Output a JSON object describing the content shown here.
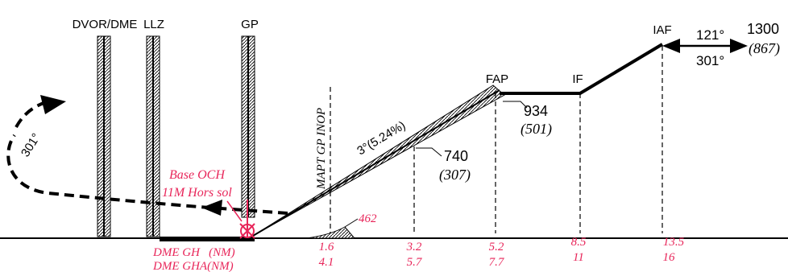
{
  "colors": {
    "ink": "#000000",
    "accent": "#e8265a"
  },
  "navaids": {
    "dvor_dme": "DVOR/DME",
    "llz": "LLZ",
    "gp": "GP"
  },
  "fixes": {
    "iaf": "IAF",
    "if": "IF",
    "faf": "FAP"
  },
  "tracks": {
    "inbound": "121°",
    "outbound": "301°",
    "missed_turn": "301°"
  },
  "altitudes": {
    "iaf_alt": "1300",
    "iaf_height": "(867)",
    "faf_alt": "934",
    "faf_height": "(501)",
    "step_alt": "740",
    "step_height": "(307)"
  },
  "glide_path": {
    "label": "3°(5.24%)"
  },
  "mapt": {
    "label": "MAPT GP INOP"
  },
  "minima": {
    "line1": "Base OCH",
    "line2": "11M Hors sol"
  },
  "obstacle": {
    "elevation": "462"
  },
  "dme": {
    "row1_label": "DME GH   (NM)",
    "row2_label": "DME GHA(NM)",
    "points": [
      {
        "gh": "1.6",
        "gha": "4.1"
      },
      {
        "gh": "3.2",
        "gha": "5.7"
      },
      {
        "gh": "5.2",
        "gha": "7.7"
      },
      {
        "gh": "8.5",
        "gha": "11"
      },
      {
        "gh": "13.5",
        "gha": "16"
      }
    ]
  }
}
